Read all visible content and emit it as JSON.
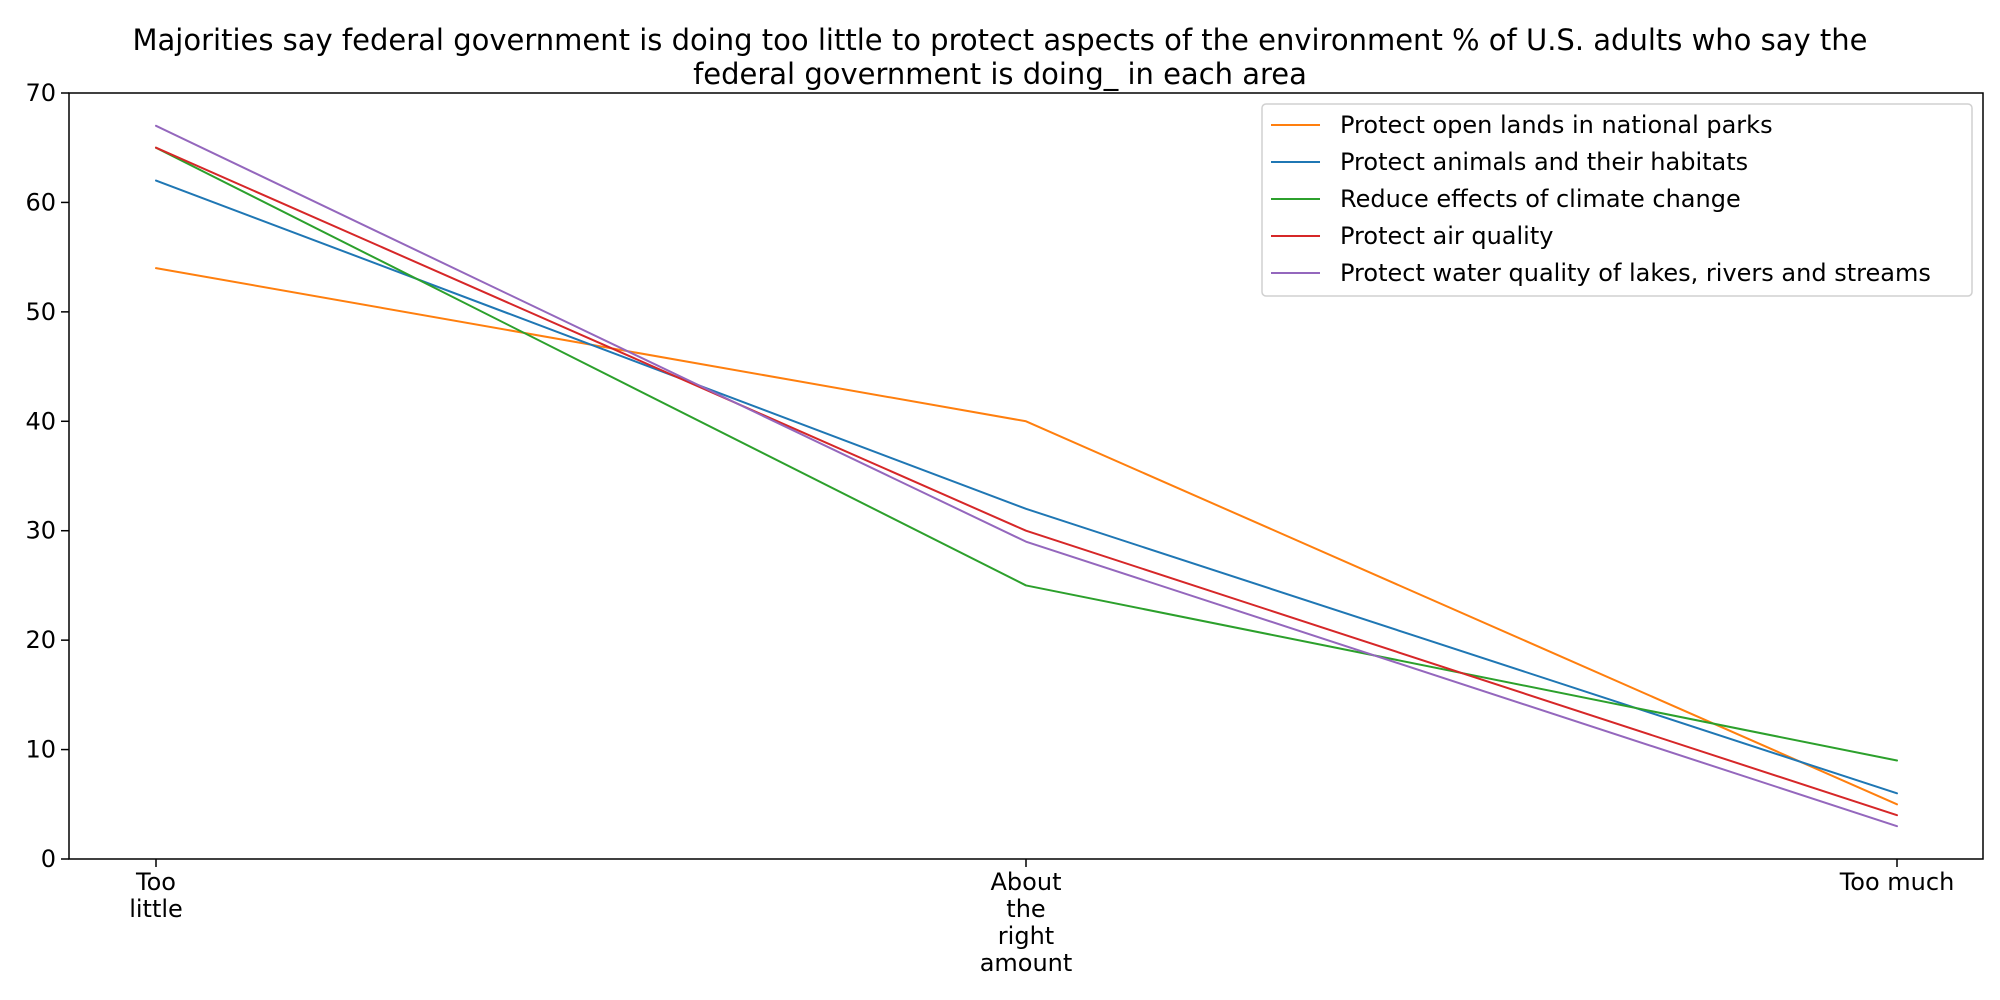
{
  "chart_data": {
    "type": "line",
    "title": "Majorities say federal government is doing too little to protect aspects of the environment % of U.S. adults who say the federal government is doing_ in each area",
    "title_lines": [
      "Majorities say federal government is doing too little to protect aspects of the environment % of U.S. adults who say the",
      "federal government is doing_ in each area"
    ],
    "xlabel": "",
    "ylabel": "",
    "categories": [
      "Too little",
      "About the right amount",
      "Too much"
    ],
    "category_label_lines": [
      [
        "Too",
        "little"
      ],
      [
        "About",
        "the",
        "right",
        "amount"
      ],
      [
        "Too much"
      ]
    ],
    "ylim": [
      0,
      70
    ],
    "yticks": [
      0,
      10,
      20,
      30,
      40,
      50,
      60,
      70
    ],
    "grid": false,
    "legend_position": "top-right",
    "series": [
      {
        "name": "Protect open lands in national parks",
        "color": "#ff7f0e",
        "values": [
          54,
          40,
          5
        ]
      },
      {
        "name": "Protect animals and their habitats",
        "color": "#1f77b4",
        "values": [
          62,
          32,
          6
        ]
      },
      {
        "name": "Reduce effects of climate change",
        "color": "#2ca02c",
        "values": [
          65,
          25,
          9
        ]
      },
      {
        "name": "Protect air quality",
        "color": "#d62728",
        "values": [
          65,
          30,
          4
        ]
      },
      {
        "name": "Protect water quality of lakes, rivers and streams",
        "color": "#9467bd",
        "values": [
          67,
          29,
          3
        ]
      }
    ]
  }
}
